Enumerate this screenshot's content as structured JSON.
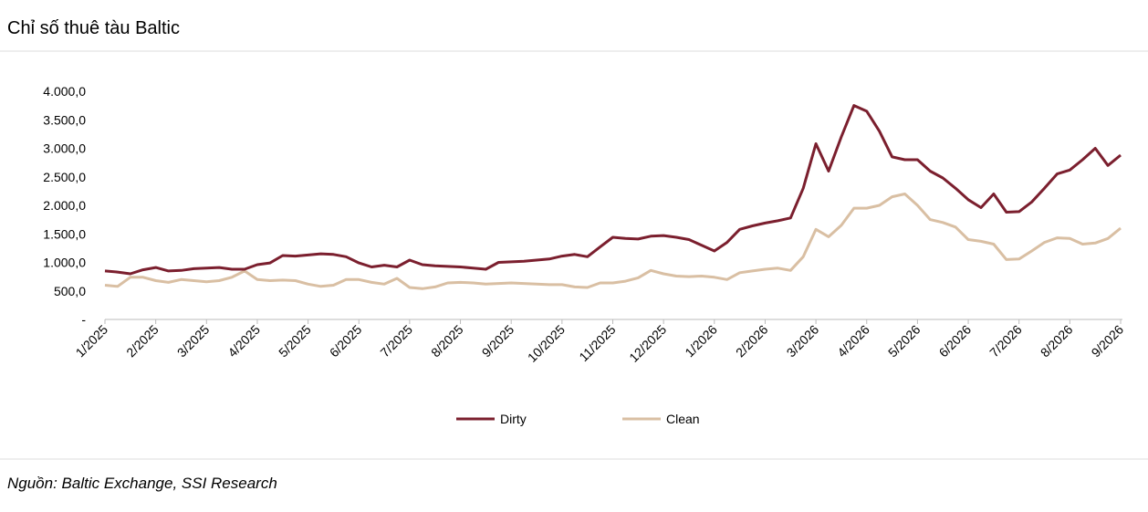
{
  "chart_data": {
    "type": "line",
    "title": "Chỉ số thuê tàu Baltic",
    "source": "Nguồn: Baltic Exchange, SSI Research",
    "categories": [
      "1/2025",
      null,
      null,
      null,
      "2/2025",
      null,
      null,
      null,
      "3/2025",
      null,
      null,
      null,
      "4/2025",
      null,
      null,
      null,
      "5/2025",
      null,
      null,
      null,
      "6/2025",
      null,
      null,
      null,
      "7/2025",
      null,
      null,
      null,
      "8/2025",
      null,
      null,
      null,
      "9/2025",
      null,
      null,
      null,
      "10/2025",
      null,
      null,
      null,
      "11/2025",
      null,
      null,
      null,
      "12/2025",
      null,
      null,
      null,
      "1/2026",
      null,
      null,
      null,
      "2/2026",
      null,
      null,
      null,
      "3/2026",
      null,
      null,
      null,
      "4/2026",
      null,
      null,
      null,
      "5/2026",
      null,
      null,
      null,
      "6/2026",
      null,
      null,
      null,
      "7/2026",
      null,
      null,
      null,
      "8/2026",
      null,
      null,
      null,
      "9/2026"
    ],
    "series": [
      {
        "name": "Dirty",
        "color": "#7b1f2e",
        "values": [
          850,
          830,
          800,
          870,
          910,
          850,
          860,
          890,
          900,
          910,
          880,
          880,
          960,
          990,
          1120,
          1110,
          1130,
          1150,
          1140,
          1100,
          990,
          920,
          950,
          920,
          1040,
          960,
          940,
          930,
          920,
          900,
          880,
          1000,
          1010,
          1020,
          1040,
          1060,
          1110,
          1140,
          1100,
          1270,
          1440,
          1420,
          1410,
          1460,
          1470,
          1440,
          1400,
          1300,
          1200,
          1350,
          1580,
          1640,
          1690,
          1730,
          1780,
          2300,
          3080,
          2600,
          3200,
          3750,
          3650,
          3300,
          2850,
          2800,
          2800,
          2600,
          2480,
          2300,
          2100,
          1960,
          2200,
          1880,
          1890,
          2060,
          2300,
          2550,
          2620,
          2800,
          3000,
          2700,
          2880
        ]
      },
      {
        "name": "Clean",
        "color": "#d9bfa3",
        "values": [
          600,
          580,
          740,
          740,
          680,
          650,
          700,
          680,
          660,
          680,
          740,
          850,
          700,
          680,
          690,
          680,
          620,
          580,
          600,
          700,
          700,
          650,
          620,
          720,
          560,
          540,
          570,
          640,
          650,
          640,
          620,
          630,
          640,
          630,
          620,
          610,
          610,
          570,
          560,
          640,
          640,
          670,
          730,
          860,
          800,
          760,
          750,
          760,
          740,
          700,
          820,
          850,
          880,
          900,
          860,
          1100,
          1580,
          1450,
          1650,
          1950,
          1950,
          2000,
          2150,
          2200,
          2000,
          1750,
          1700,
          1620,
          1400,
          1370,
          1320,
          1050,
          1060,
          1200,
          1350,
          1430,
          1420,
          1320,
          1340,
          1420,
          1600
        ]
      }
    ],
    "ylim": [
      0,
      4000
    ],
    "yticks": [
      {
        "value": 0,
        "label": "-"
      },
      {
        "value": 500,
        "label": "500,0"
      },
      {
        "value": 1000,
        "label": "1.000,0"
      },
      {
        "value": 1500,
        "label": "1.500,0"
      },
      {
        "value": 2000,
        "label": "2.000,0"
      },
      {
        "value": 2500,
        "label": "2.500,0"
      },
      {
        "value": 3000,
        "label": "3.000,0"
      },
      {
        "value": 3500,
        "label": "3.500,0"
      },
      {
        "value": 4000,
        "label": "4.000,0"
      }
    ],
    "grid": false,
    "legend": "bottom"
  }
}
